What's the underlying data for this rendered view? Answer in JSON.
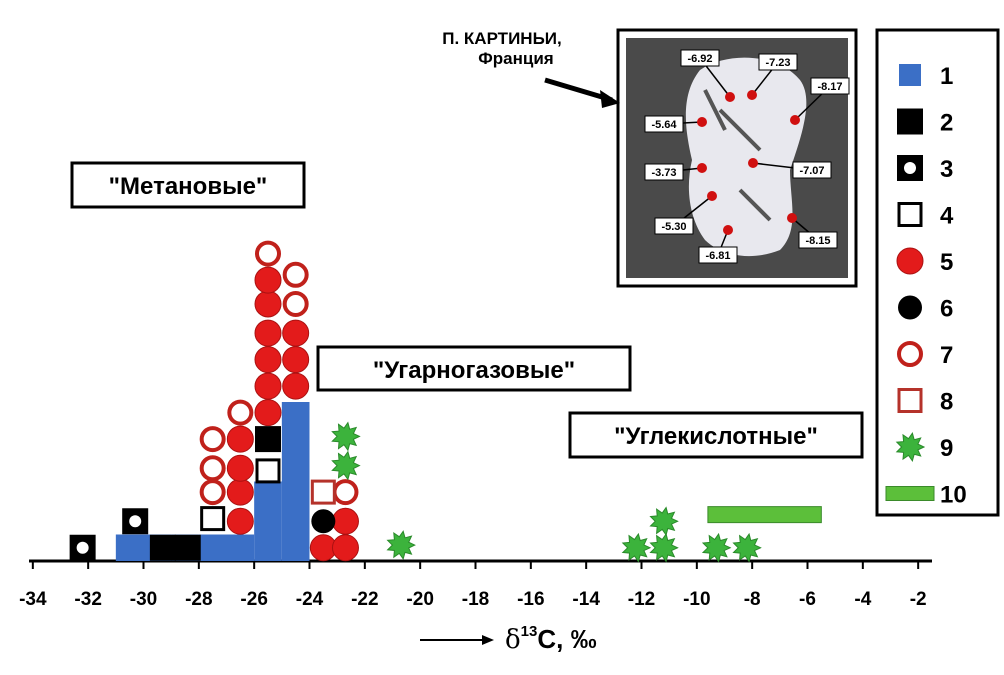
{
  "chart_data": {
    "type": "dotplot",
    "xlim": [
      -34.5,
      -1.5
    ],
    "xticks": [
      -34,
      -32,
      -30,
      -28,
      -26,
      -24,
      -22,
      -20,
      -18,
      -16,
      -14,
      -12,
      -10,
      -8,
      -6,
      -4,
      -2
    ],
    "ylim": [
      0,
      12
    ],
    "xlabel": {
      "symbol": "δ",
      "superscript": "13",
      "text": "C, ‰"
    },
    "annotations": [
      "\"Метановые\"",
      "\"Угарногазовые\"",
      "\"Углекислотные\""
    ],
    "inset": {
      "title": [
        "П. КАРТИНЬИ,",
        "Франция"
      ],
      "labels": [
        "-6.92",
        "-7.23",
        "-8.17",
        "-5.64",
        "-3.73",
        "-7.07",
        "-5.30",
        "-6.81",
        "-8.15"
      ]
    },
    "series": [
      {
        "name": "1",
        "symbol": "histogram",
        "color": "#3b6fc6",
        "bins": [
          -31,
          -30,
          -29,
          -28,
          -27,
          -26,
          -25,
          -24
        ],
        "values": [
          1,
          1,
          1,
          1,
          1,
          3,
          6
        ]
      },
      {
        "name": "2",
        "symbol": "black-square",
        "color": "#000000",
        "x": [
          -29.3,
          -28.4,
          -25.5
        ],
        "y": [
          0.5,
          0.5,
          4.6
        ]
      },
      {
        "name": "3",
        "symbol": "square-dot",
        "color": "#000000",
        "x": [
          -32.2,
          -30.3
        ],
        "y": [
          0.5,
          1.5
        ]
      },
      {
        "name": "4",
        "symbol": "open-square",
        "color": "#000000",
        "x": [
          -27.5,
          -25.5
        ],
        "y": [
          1.6,
          3.4
        ]
      },
      {
        "name": "5",
        "symbol": "red-circle",
        "color": "#e31b1b",
        "x": [
          -26.5,
          -26.5,
          -26.5,
          -26.5,
          -25.5,
          -25.5,
          -25.5,
          -25.5,
          -25.5,
          -25.5,
          -24.5,
          -24.5,
          -24.5,
          -23.5,
          -22.7,
          -22.7
        ],
        "y": [
          1.5,
          2.6,
          3.5,
          4.6,
          5.6,
          6.6,
          7.6,
          8.6,
          9.7,
          10.6,
          6.6,
          7.6,
          8.6,
          0.5,
          0.5,
          1.5
        ]
      },
      {
        "name": "6",
        "symbol": "black-circle",
        "color": "#000000",
        "x": [
          -23.5
        ],
        "y": [
          1.5
        ]
      },
      {
        "name": "7",
        "symbol": "open-circle",
        "color": "#c0211b",
        "x": [
          -27.5,
          -27.5,
          -27.5,
          -26.5,
          -25.5,
          -24.5,
          -24.5,
          -22.7
        ],
        "y": [
          2.6,
          3.5,
          4.6,
          5.6,
          11.6,
          9.7,
          10.8,
          2.6
        ]
      },
      {
        "name": "8",
        "symbol": "open-red-square",
        "color": "#b5322a",
        "x": [
          -23.5
        ],
        "y": [
          2.6
        ]
      },
      {
        "name": "9",
        "symbol": "star",
        "color": "#3cb33c",
        "x": [
          -22.7,
          -22.7,
          -20.7,
          -12.2,
          -11.2,
          -11.2,
          -9.3,
          -8.2
        ],
        "y": [
          4.7,
          3.6,
          0.6,
          0.5,
          0.5,
          1.5,
          0.5,
          0.5
        ]
      },
      {
        "name": "10",
        "symbol": "range-bar",
        "color": "#5cbf3a",
        "ranges": [
          [
            -9.6,
            -5.5
          ]
        ],
        "y": [
          1.75
        ]
      }
    ]
  }
}
